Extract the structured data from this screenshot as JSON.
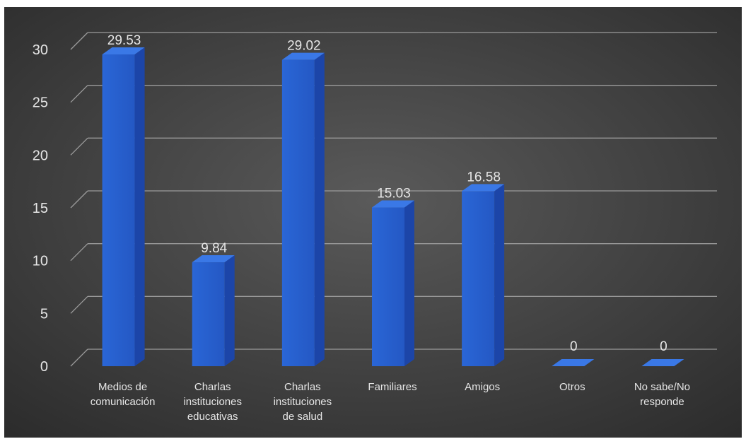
{
  "chart_data": {
    "type": "bar",
    "categories": [
      [
        "Medios de",
        "comunicación"
      ],
      [
        "Charlas",
        "instituciones",
        "educativas"
      ],
      [
        "Charlas",
        "instituciones",
        "de salud"
      ],
      [
        "Familiares"
      ],
      [
        "Amigos"
      ],
      [
        "Otros"
      ],
      [
        "No sabe/No",
        "responde"
      ]
    ],
    "values": [
      29.53,
      9.84,
      29.02,
      15.03,
      16.58,
      0,
      0
    ],
    "data_labels": [
      "29.53",
      "9.84",
      "29.02",
      "15.03",
      "16.58",
      "0",
      "0"
    ],
    "yticks": [
      "0",
      "5",
      "10",
      "15",
      "20",
      "25",
      "30"
    ],
    "ylim": [
      0,
      30
    ],
    "grid": true,
    "legend": "none",
    "title": "",
    "xlabel": "",
    "ylabel": "",
    "colors": {
      "bar_front": "#2a66d6",
      "bar_side": "#1c45a8",
      "bar_top": "#3a78e6",
      "grid": "#9a9a9a",
      "text": "#e6e6e6",
      "background_center": "#5a5a5a",
      "background_edge": "#2b2b2b"
    }
  }
}
